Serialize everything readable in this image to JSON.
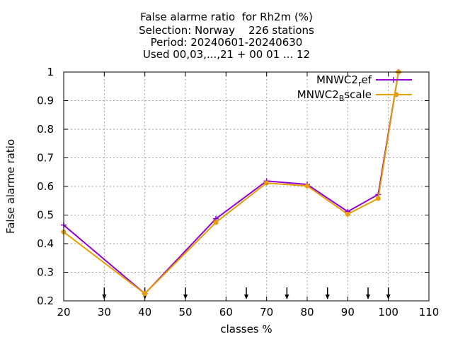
{
  "chart_data": {
    "type": "line",
    "title_lines": [
      "False alarme ratio  for Rh2m (%)",
      "Selection: Norway    226 stations",
      "Period: 20240601-20240630",
      "Used 00,03,...,21 + 00 01 ... 12"
    ],
    "xlabel": "classes %",
    "ylabel": "False alarme ratio",
    "xlim": [
      20,
      110
    ],
    "ylim": [
      0.2,
      1.0
    ],
    "x_ticks": [
      20,
      30,
      40,
      50,
      60,
      70,
      80,
      90,
      100,
      110
    ],
    "y_ticks": [
      0.2,
      0.3,
      0.4,
      0.5,
      0.6,
      0.7,
      0.8,
      0.9,
      1.0
    ],
    "y_tick_labels": [
      "0.2",
      "0.3",
      "0.4",
      "0.5",
      "0.6",
      "0.7",
      "0.8",
      "0.9",
      "1"
    ],
    "grid": true,
    "legend_position": "top-right",
    "arrows_x": [
      30,
      40,
      50,
      65,
      75,
      85,
      95,
      100
    ],
    "series": [
      {
        "name": "MNWC2_ref",
        "legend_main": "MNWC2",
        "legend_sub": "r",
        "legend_tail": "ef",
        "color": "#9400d3",
        "marker": "plus",
        "x": [
          20,
          40,
          57.5,
          70,
          80,
          90,
          97.5,
          102.5
        ],
        "y": [
          0.465,
          0.225,
          0.487,
          0.619,
          0.607,
          0.512,
          0.572,
          1.0
        ]
      },
      {
        "name": "MNWC2_Bscale",
        "legend_main": "MNWC2",
        "legend_sub": "B",
        "legend_tail": "scale",
        "color": "#e69f00",
        "marker": "dot",
        "x": [
          20,
          40,
          57.5,
          70,
          80,
          90,
          97.5,
          102.5
        ],
        "y": [
          0.441,
          0.225,
          0.474,
          0.612,
          0.602,
          0.503,
          0.558,
          1.0
        ]
      }
    ]
  }
}
